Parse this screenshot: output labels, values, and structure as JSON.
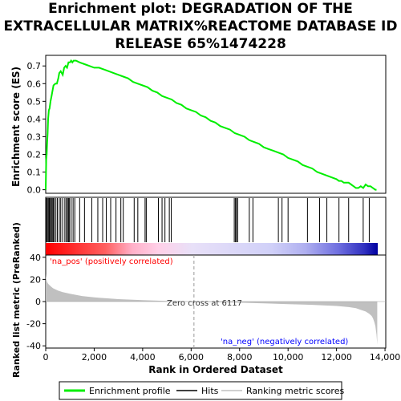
{
  "title_lines": [
    "Enrichment plot: DEGRADATION OF THE",
    "EXTRACELLULAR MATRIX%REACTOME DATABASE ID",
    "RELEASE 65%1474228"
  ],
  "colors": {
    "enrichment_line": "#00ee00",
    "hits": "#000000",
    "ranking_fill": "#c0c0c0",
    "pos_label": "#ff0000",
    "neg_label": "#0000ff",
    "axis": "#000000",
    "grid_gray": "#999999"
  },
  "chart_data": [
    {
      "type": "line",
      "name": "enrichment-profile",
      "ylabel": "Enrichment score (ES)",
      "ylim": [
        -0.02,
        0.76
      ],
      "yticks": [
        0.0,
        0.1,
        0.2,
        0.3,
        0.4,
        0.5,
        0.6,
        0.7
      ],
      "ytick_labels": [
        "0.0",
        "0.1",
        "0.2",
        "0.3",
        "0.4",
        "0.5",
        "0.6",
        "0.7"
      ],
      "xlim": [
        0,
        13700
      ],
      "series": [
        {
          "name": "Enrichment profile",
          "x": [
            0,
            20,
            40,
            60,
            80,
            100,
            130,
            160,
            200,
            240,
            280,
            320,
            400,
            460,
            520,
            560,
            620,
            700,
            760,
            820,
            880,
            940,
            1000,
            1050,
            1100,
            1150,
            1250,
            1400,
            1600,
            1800,
            2000,
            2200,
            2400,
            2600,
            2800,
            3000,
            3200,
            3400,
            3600,
            3800,
            4000,
            4200,
            4400,
            4600,
            4800,
            5000,
            5200,
            5400,
            5600,
            5800,
            6000,
            6200,
            6400,
            6600,
            6800,
            7000,
            7200,
            7400,
            7600,
            7800,
            8000,
            8200,
            8400,
            8600,
            8800,
            9000,
            9200,
            9400,
            9600,
            9800,
            10000,
            10200,
            10400,
            10600,
            10800,
            11000,
            11200,
            11400,
            11600,
            11800,
            12000,
            12100,
            12200,
            12300,
            12400,
            12500,
            12600,
            12700,
            12800,
            12900,
            13000,
            13100,
            13200,
            13300,
            13400,
            13500,
            13600,
            13650
          ],
          "y": [
            0.0,
            0.17,
            0.2,
            0.27,
            0.32,
            0.4,
            0.45,
            0.46,
            0.5,
            0.53,
            0.56,
            0.59,
            0.6,
            0.6,
            0.63,
            0.66,
            0.67,
            0.65,
            0.69,
            0.7,
            0.69,
            0.72,
            0.72,
            0.73,
            0.72,
            0.73,
            0.73,
            0.72,
            0.71,
            0.7,
            0.69,
            0.69,
            0.68,
            0.67,
            0.66,
            0.65,
            0.64,
            0.63,
            0.61,
            0.6,
            0.59,
            0.58,
            0.56,
            0.55,
            0.53,
            0.52,
            0.51,
            0.49,
            0.48,
            0.46,
            0.45,
            0.44,
            0.42,
            0.41,
            0.39,
            0.38,
            0.36,
            0.35,
            0.34,
            0.32,
            0.31,
            0.3,
            0.28,
            0.27,
            0.26,
            0.24,
            0.23,
            0.22,
            0.21,
            0.2,
            0.18,
            0.17,
            0.16,
            0.14,
            0.13,
            0.12,
            0.1,
            0.09,
            0.08,
            0.07,
            0.06,
            0.05,
            0.05,
            0.04,
            0.04,
            0.04,
            0.03,
            0.02,
            0.01,
            0.01,
            0.02,
            0.01,
            0.03,
            0.02,
            0.02,
            0.01,
            0.0,
            0.0
          ]
        }
      ]
    },
    {
      "type": "scatter",
      "name": "hits",
      "xlim": [
        0,
        13700
      ],
      "x": [
        30,
        70,
        110,
        150,
        190,
        230,
        270,
        310,
        350,
        420,
        480,
        560,
        620,
        700,
        790,
        850,
        900,
        940,
        980,
        1050,
        1130,
        1200,
        1400,
        1600,
        1900,
        2150,
        2350,
        2500,
        2680,
        2900,
        3100,
        3200,
        3650,
        3800,
        4100,
        4150,
        4650,
        4800,
        4920,
        5100,
        5180,
        7780,
        7830,
        7870,
        7920,
        8400,
        8550,
        9600,
        9750,
        10000,
        10800,
        11300,
        11600,
        12100,
        12500,
        13100,
        13350
      ]
    },
    {
      "type": "area",
      "name": "ranked-list-metric",
      "ylabel": "Ranked list metric (PreRanked)",
      "xlabel": "Rank in Ordered Dataset",
      "xlim": [
        0,
        13700
      ],
      "ylim": [
        -42,
        42
      ],
      "yticks": [
        -40,
        -20,
        0,
        20,
        40
      ],
      "ytick_labels": [
        "-40",
        "-20",
        "0",
        "20",
        "40"
      ],
      "xticks": [
        0,
        2000,
        4000,
        6000,
        8000,
        10000,
        12000,
        14000
      ],
      "xtick_labels": [
        "0",
        "2,000",
        "4,000",
        "6,000",
        "8,000",
        "10,000",
        "12,000",
        "14,000"
      ],
      "x": [
        0,
        10,
        50,
        100,
        200,
        300,
        500,
        700,
        1000,
        1500,
        2000,
        3000,
        4000,
        5000,
        6117,
        7000,
        8000,
        9000,
        10000,
        11000,
        12000,
        12500,
        12800,
        13000,
        13200,
        13350,
        13450,
        13500,
        13550,
        13600,
        13650,
        13680
      ],
      "values": [
        25,
        22,
        18,
        16,
        14,
        12,
        10,
        8.5,
        7,
        5,
        3.8,
        2.2,
        1.2,
        0.5,
        0,
        -0.5,
        -1,
        -1.6,
        -2.3,
        -3,
        -4,
        -5,
        -6,
        -7.5,
        -9,
        -11,
        -13,
        -15,
        -18,
        -22,
        -30,
        -39
      ],
      "zero_cross_label": "Zero cross at 6117",
      "zero_cross": 6117,
      "pos_label": "'na_pos' (positively correlated)",
      "neg_label": "'na_neg' (negatively correlated)"
    }
  ],
  "legend": {
    "items": [
      {
        "label": "Enrichment profile",
        "color": "#00ee00"
      },
      {
        "label": "Hits",
        "color": "#000000"
      },
      {
        "label": "Ranking metric scores",
        "color": "#c0c0c0"
      }
    ]
  }
}
